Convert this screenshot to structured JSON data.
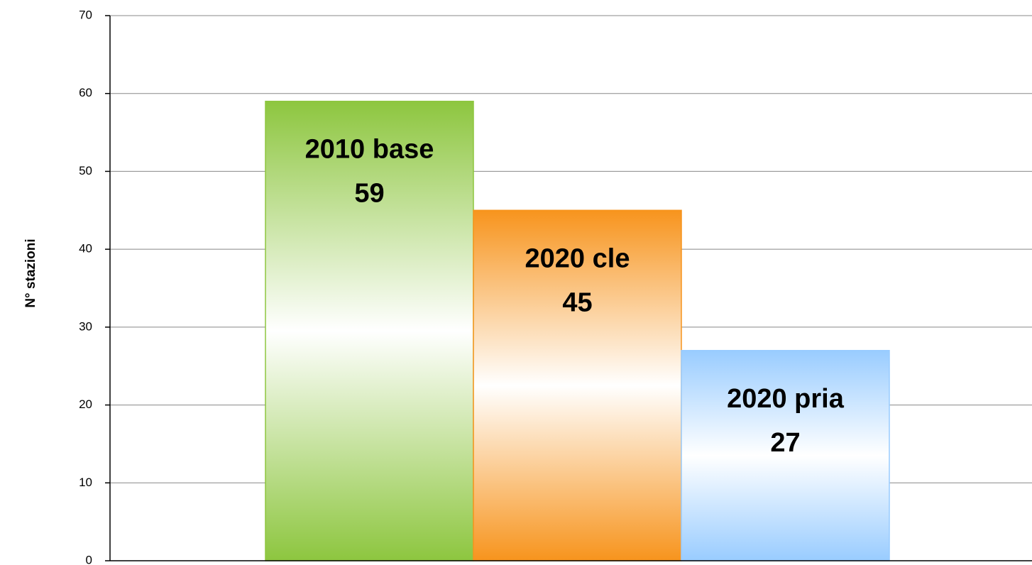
{
  "chart_data": {
    "type": "bar",
    "y_label": "N° stazioni",
    "categories": [
      "2010 base",
      "2020 cle",
      "2020 pria"
    ],
    "values": [
      59,
      45,
      27
    ],
    "colors": [
      "#8dc63f",
      "#f7941d",
      "#99ccff"
    ],
    "ylim": [
      0,
      70
    ],
    "yticks": [
      0,
      10,
      20,
      30,
      40,
      50,
      60,
      70
    ],
    "grid": true
  }
}
